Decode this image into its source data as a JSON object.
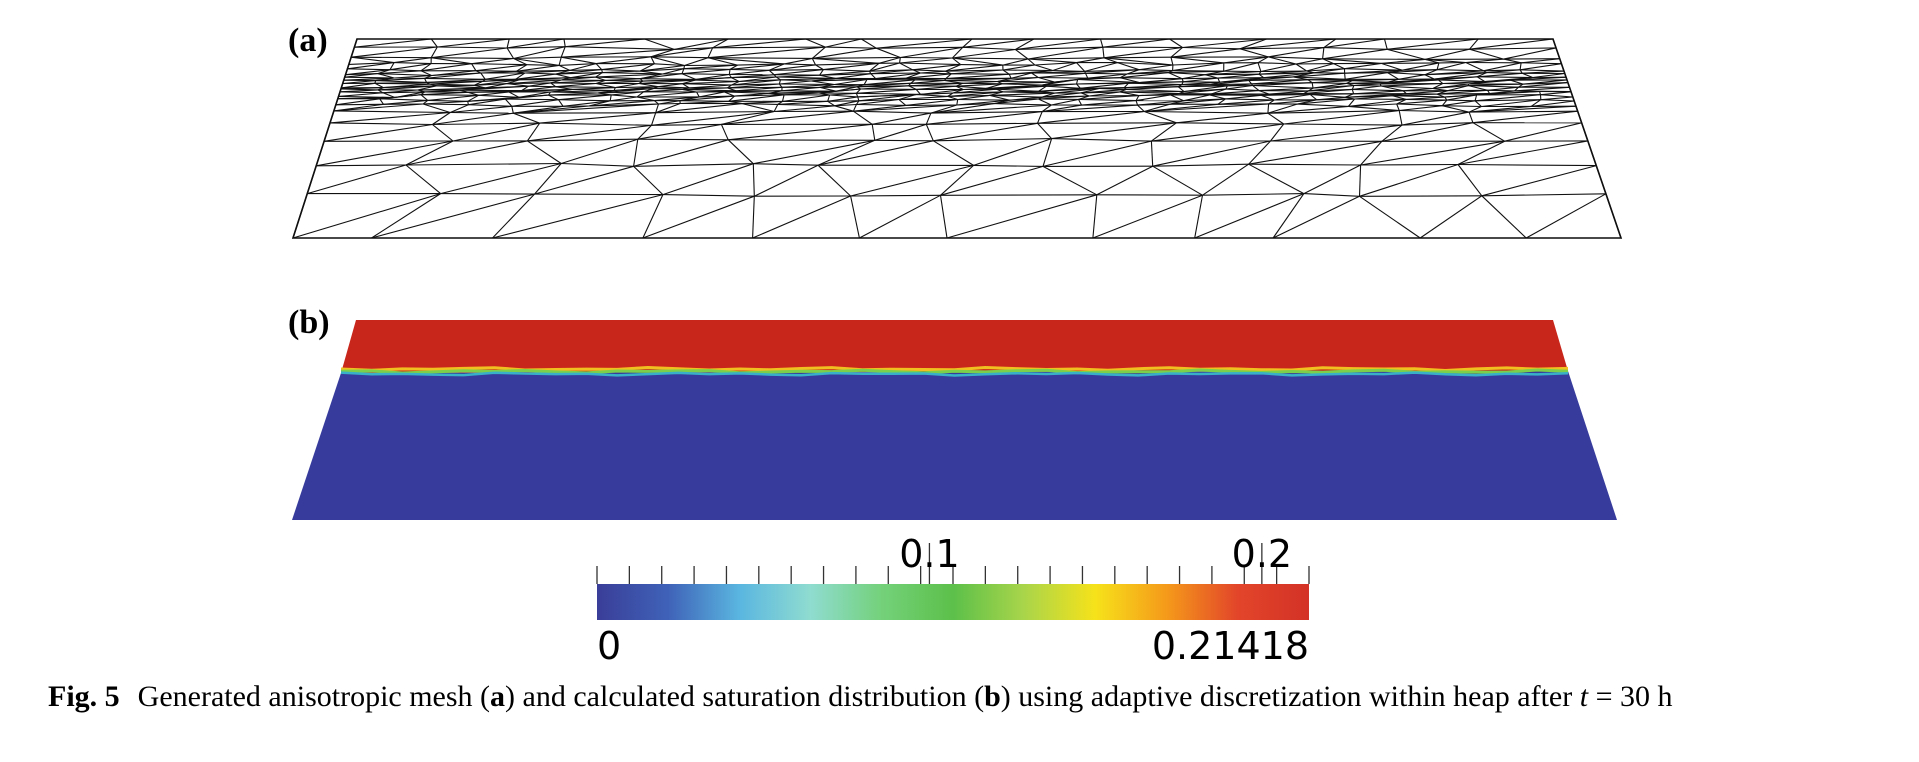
{
  "figure": {
    "panel_a_label": "(a)",
    "panel_b_label": "(b)"
  },
  "colorbar": {
    "min_label": "0",
    "max_label": "0.21418",
    "min_value": 0,
    "max_value": 0.21418,
    "major_ticks": [
      {
        "label": "0.1",
        "value": 0.1
      },
      {
        "label": "0.2",
        "value": 0.2
      }
    ],
    "minor_tick_count": 22,
    "colormap": [
      "#3a3e98",
      "#3f62b8",
      "#5ab6e0",
      "#8fdcd0",
      "#74d17a",
      "#5cc04a",
      "#a9d54a",
      "#f6e21a",
      "#f59a1a",
      "#e2452a",
      "#d33226"
    ]
  },
  "saturation_field": {
    "upper_region_color": "#c8261b",
    "lower_region_color": "#373c9c",
    "front_colors": [
      "#f0c020",
      "#7ccf4a",
      "#37b0c8"
    ]
  },
  "caption": {
    "fig_number": "Fig. 5",
    "part1": "Generated anisotropic mesh (",
    "a": "a",
    "part2": ") and calculated saturation distribution (",
    "b": "b",
    "part3": ") using adaptive discretization within heap after ",
    "t": "t",
    "equation": " = 30 h"
  }
}
